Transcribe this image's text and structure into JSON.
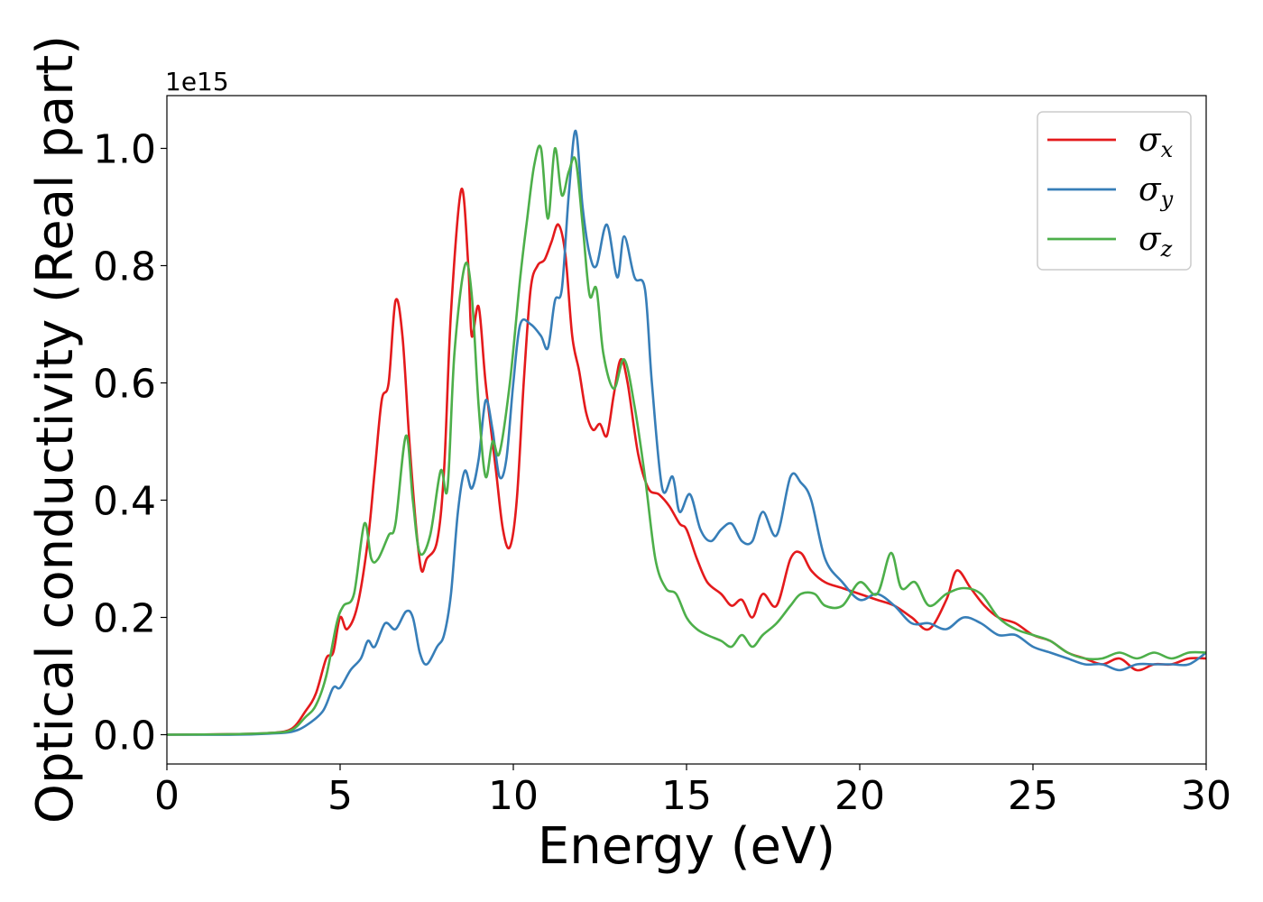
{
  "chart_data": {
    "type": "line",
    "xlabel": "Energy (eV)",
    "ylabel": "Optical conductivity (Real part)",
    "y_offset_text": "1e15",
    "xlim": [
      0,
      30
    ],
    "ylim": [
      -0.05,
      1.09
    ],
    "xticks": [
      0,
      5,
      10,
      15,
      20,
      25,
      30
    ],
    "xtick_labels": [
      "0",
      "5",
      "10",
      "15",
      "20",
      "25",
      "30"
    ],
    "yticks": [
      0.0,
      0.2,
      0.4,
      0.6,
      0.8,
      1.0
    ],
    "ytick_labels": [
      "0.0",
      "0.2",
      "0.4",
      "0.6",
      "0.8",
      "1.0"
    ],
    "grid": false,
    "legend_position": "top-right",
    "series": [
      {
        "name": "σx",
        "symbol": "σ",
        "subscript": "x",
        "color": "#e41a1c",
        "points": [
          [
            0,
            0
          ],
          [
            2,
            0.001
          ],
          [
            3,
            0.003
          ],
          [
            3.6,
            0.01
          ],
          [
            4,
            0.04
          ],
          [
            4.3,
            0.07
          ],
          [
            4.6,
            0.13
          ],
          [
            4.8,
            0.14
          ],
          [
            5,
            0.2
          ],
          [
            5.2,
            0.18
          ],
          [
            5.5,
            0.22
          ],
          [
            5.8,
            0.33
          ],
          [
            6,
            0.45
          ],
          [
            6.2,
            0.57
          ],
          [
            6.4,
            0.6
          ],
          [
            6.6,
            0.74
          ],
          [
            6.8,
            0.68
          ],
          [
            7,
            0.5
          ],
          [
            7.2,
            0.35
          ],
          [
            7.35,
            0.28
          ],
          [
            7.5,
            0.3
          ],
          [
            7.8,
            0.33
          ],
          [
            8,
            0.45
          ],
          [
            8.2,
            0.72
          ],
          [
            8.5,
            0.93
          ],
          [
            8.7,
            0.8
          ],
          [
            8.8,
            0.68
          ],
          [
            9,
            0.73
          ],
          [
            9.2,
            0.6
          ],
          [
            9.5,
            0.45
          ],
          [
            9.7,
            0.35
          ],
          [
            9.9,
            0.32
          ],
          [
            10.1,
            0.4
          ],
          [
            10.3,
            0.6
          ],
          [
            10.5,
            0.76
          ],
          [
            10.7,
            0.8
          ],
          [
            10.9,
            0.81
          ],
          [
            11.1,
            0.84
          ],
          [
            11.3,
            0.87
          ],
          [
            11.5,
            0.82
          ],
          [
            11.7,
            0.68
          ],
          [
            11.9,
            0.62
          ],
          [
            12.1,
            0.55
          ],
          [
            12.3,
            0.52
          ],
          [
            12.5,
            0.53
          ],
          [
            12.7,
            0.51
          ],
          [
            12.9,
            0.58
          ],
          [
            13.1,
            0.64
          ],
          [
            13.3,
            0.6
          ],
          [
            13.6,
            0.48
          ],
          [
            13.9,
            0.42
          ],
          [
            14.2,
            0.41
          ],
          [
            14.5,
            0.39
          ],
          [
            14.8,
            0.36
          ],
          [
            15,
            0.35
          ],
          [
            15.3,
            0.3
          ],
          [
            15.6,
            0.26
          ],
          [
            16,
            0.24
          ],
          [
            16.3,
            0.22
          ],
          [
            16.6,
            0.23
          ],
          [
            16.9,
            0.2
          ],
          [
            17.2,
            0.24
          ],
          [
            17.6,
            0.22
          ],
          [
            18,
            0.3
          ],
          [
            18.3,
            0.31
          ],
          [
            18.6,
            0.28
          ],
          [
            19,
            0.26
          ],
          [
            19.5,
            0.25
          ],
          [
            20,
            0.24
          ],
          [
            20.5,
            0.23
          ],
          [
            21,
            0.22
          ],
          [
            21.5,
            0.2
          ],
          [
            22,
            0.18
          ],
          [
            22.5,
            0.23
          ],
          [
            22.8,
            0.28
          ],
          [
            23.2,
            0.25
          ],
          [
            23.6,
            0.22
          ],
          [
            24,
            0.2
          ],
          [
            24.5,
            0.19
          ],
          [
            25,
            0.17
          ],
          [
            25.5,
            0.16
          ],
          [
            26,
            0.14
          ],
          [
            26.5,
            0.13
          ],
          [
            27,
            0.12
          ],
          [
            27.5,
            0.13
          ],
          [
            28,
            0.11
          ],
          [
            28.5,
            0.12
          ],
          [
            29,
            0.12
          ],
          [
            29.5,
            0.13
          ],
          [
            30,
            0.13
          ]
        ]
      },
      {
        "name": "σy",
        "symbol": "σ",
        "subscript": "y",
        "color": "#377eb8",
        "points": [
          [
            0,
            0
          ],
          [
            2,
            0
          ],
          [
            3,
            0.002
          ],
          [
            3.6,
            0.005
          ],
          [
            4,
            0.015
          ],
          [
            4.5,
            0.04
          ],
          [
            4.8,
            0.08
          ],
          [
            5,
            0.08
          ],
          [
            5.3,
            0.11
          ],
          [
            5.6,
            0.13
          ],
          [
            5.8,
            0.16
          ],
          [
            6,
            0.15
          ],
          [
            6.3,
            0.19
          ],
          [
            6.6,
            0.18
          ],
          [
            6.9,
            0.21
          ],
          [
            7.1,
            0.2
          ],
          [
            7.3,
            0.14
          ],
          [
            7.5,
            0.12
          ],
          [
            7.8,
            0.15
          ],
          [
            8,
            0.17
          ],
          [
            8.2,
            0.24
          ],
          [
            8.4,
            0.38
          ],
          [
            8.6,
            0.45
          ],
          [
            8.8,
            0.42
          ],
          [
            9,
            0.47
          ],
          [
            9.2,
            0.57
          ],
          [
            9.4,
            0.52
          ],
          [
            9.6,
            0.44
          ],
          [
            9.8,
            0.47
          ],
          [
            10,
            0.6
          ],
          [
            10.2,
            0.7
          ],
          [
            10.5,
            0.7
          ],
          [
            10.8,
            0.68
          ],
          [
            11,
            0.66
          ],
          [
            11.2,
            0.74
          ],
          [
            11.4,
            0.76
          ],
          [
            11.6,
            0.92
          ],
          [
            11.8,
            1.03
          ],
          [
            12,
            0.9
          ],
          [
            12.2,
            0.82
          ],
          [
            12.4,
            0.8
          ],
          [
            12.7,
            0.87
          ],
          [
            13,
            0.78
          ],
          [
            13.2,
            0.85
          ],
          [
            13.5,
            0.78
          ],
          [
            13.8,
            0.76
          ],
          [
            14,
            0.6
          ],
          [
            14.3,
            0.42
          ],
          [
            14.6,
            0.44
          ],
          [
            14.8,
            0.38
          ],
          [
            15.1,
            0.41
          ],
          [
            15.4,
            0.35
          ],
          [
            15.7,
            0.33
          ],
          [
            16,
            0.35
          ],
          [
            16.3,
            0.36
          ],
          [
            16.6,
            0.33
          ],
          [
            16.9,
            0.33
          ],
          [
            17.2,
            0.38
          ],
          [
            17.6,
            0.34
          ],
          [
            18,
            0.44
          ],
          [
            18.3,
            0.43
          ],
          [
            18.6,
            0.4
          ],
          [
            19,
            0.3
          ],
          [
            19.5,
            0.26
          ],
          [
            20,
            0.23
          ],
          [
            20.5,
            0.24
          ],
          [
            21,
            0.22
          ],
          [
            21.5,
            0.19
          ],
          [
            22,
            0.19
          ],
          [
            22.5,
            0.18
          ],
          [
            23,
            0.2
          ],
          [
            23.5,
            0.19
          ],
          [
            24,
            0.17
          ],
          [
            24.5,
            0.17
          ],
          [
            25,
            0.15
          ],
          [
            25.5,
            0.14
          ],
          [
            26,
            0.13
          ],
          [
            26.5,
            0.12
          ],
          [
            27,
            0.12
          ],
          [
            27.5,
            0.11
          ],
          [
            28,
            0.12
          ],
          [
            28.5,
            0.12
          ],
          [
            29,
            0.12
          ],
          [
            29.5,
            0.12
          ],
          [
            30,
            0.14
          ]
        ]
      },
      {
        "name": "σz",
        "symbol": "σ",
        "subscript": "z",
        "color": "#4daf4a",
        "points": [
          [
            0,
            0
          ],
          [
            2,
            0.001
          ],
          [
            3,
            0.003
          ],
          [
            3.6,
            0.008
          ],
          [
            4,
            0.03
          ],
          [
            4.3,
            0.05
          ],
          [
            4.6,
            0.1
          ],
          [
            4.9,
            0.19
          ],
          [
            5.1,
            0.22
          ],
          [
            5.4,
            0.24
          ],
          [
            5.7,
            0.36
          ],
          [
            5.9,
            0.3
          ],
          [
            6.1,
            0.3
          ],
          [
            6.4,
            0.34
          ],
          [
            6.6,
            0.36
          ],
          [
            6.9,
            0.51
          ],
          [
            7.1,
            0.4
          ],
          [
            7.3,
            0.31
          ],
          [
            7.6,
            0.34
          ],
          [
            7.9,
            0.45
          ],
          [
            8.1,
            0.42
          ],
          [
            8.3,
            0.65
          ],
          [
            8.6,
            0.8
          ],
          [
            8.8,
            0.75
          ],
          [
            9,
            0.56
          ],
          [
            9.2,
            0.44
          ],
          [
            9.4,
            0.5
          ],
          [
            9.6,
            0.48
          ],
          [
            9.9,
            0.6
          ],
          [
            10.2,
            0.78
          ],
          [
            10.4,
            0.88
          ],
          [
            10.6,
            0.97
          ],
          [
            10.8,
            1.0
          ],
          [
            11,
            0.88
          ],
          [
            11.2,
            1.0
          ],
          [
            11.4,
            0.92
          ],
          [
            11.6,
            0.96
          ],
          [
            11.8,
            0.98
          ],
          [
            12,
            0.87
          ],
          [
            12.2,
            0.75
          ],
          [
            12.4,
            0.76
          ],
          [
            12.6,
            0.65
          ],
          [
            12.9,
            0.59
          ],
          [
            13.2,
            0.64
          ],
          [
            13.5,
            0.56
          ],
          [
            13.8,
            0.44
          ],
          [
            14.1,
            0.3
          ],
          [
            14.4,
            0.25
          ],
          [
            14.7,
            0.24
          ],
          [
            15,
            0.2
          ],
          [
            15.3,
            0.18
          ],
          [
            15.6,
            0.17
          ],
          [
            16,
            0.16
          ],
          [
            16.3,
            0.15
          ],
          [
            16.6,
            0.17
          ],
          [
            16.9,
            0.15
          ],
          [
            17.2,
            0.17
          ],
          [
            17.6,
            0.19
          ],
          [
            18,
            0.22
          ],
          [
            18.3,
            0.24
          ],
          [
            18.7,
            0.24
          ],
          [
            19,
            0.22
          ],
          [
            19.5,
            0.22
          ],
          [
            20,
            0.26
          ],
          [
            20.5,
            0.24
          ],
          [
            20.9,
            0.31
          ],
          [
            21.2,
            0.25
          ],
          [
            21.6,
            0.26
          ],
          [
            22,
            0.22
          ],
          [
            22.5,
            0.24
          ],
          [
            23,
            0.25
          ],
          [
            23.5,
            0.24
          ],
          [
            24,
            0.2
          ],
          [
            24.5,
            0.18
          ],
          [
            25,
            0.17
          ],
          [
            25.5,
            0.16
          ],
          [
            26,
            0.14
          ],
          [
            26.5,
            0.13
          ],
          [
            27,
            0.13
          ],
          [
            27.5,
            0.14
          ],
          [
            28,
            0.13
          ],
          [
            28.5,
            0.14
          ],
          [
            29,
            0.13
          ],
          [
            29.5,
            0.14
          ],
          [
            30,
            0.14
          ]
        ]
      }
    ]
  }
}
